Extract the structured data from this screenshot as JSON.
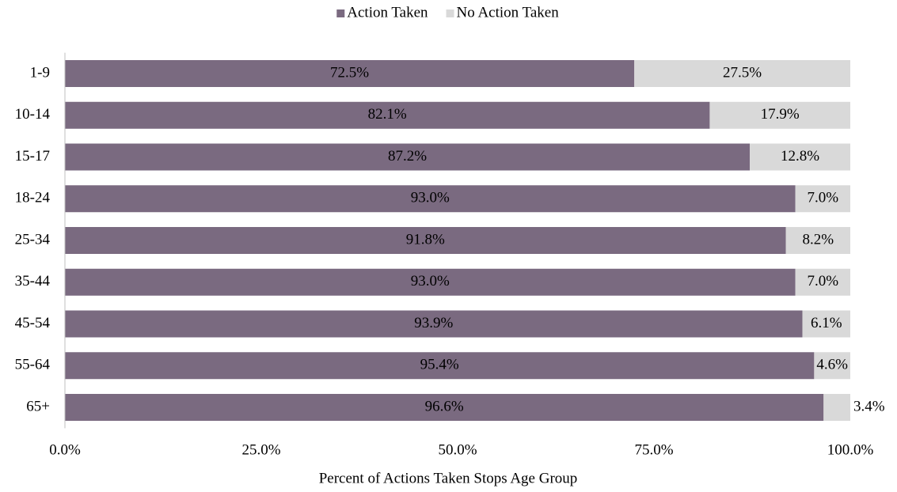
{
  "chart_data": {
    "type": "stacked-bar-horizontal",
    "x_label": "Percent of Actions Taken Stops Age Group",
    "categories": [
      "1-9",
      "10-14",
      "15-17",
      "18-24",
      "25-34",
      "35-44",
      "45-54",
      "55-64",
      "65+"
    ],
    "series": [
      {
        "name": "Action Taken",
        "color": "#7a6a80",
        "label_color": "#ffffff",
        "values": [
          72.5,
          82.1,
          87.2,
          93.0,
          91.8,
          93.0,
          93.9,
          95.4,
          96.6
        ],
        "value_labels": [
          "72.5%",
          "82.1%",
          "87.2%",
          "93.0%",
          "91.8%",
          "93.0%",
          "93.9%",
          "95.4%",
          "96.6%"
        ]
      },
      {
        "name": "No Action Taken",
        "color": "#d9d9d9",
        "label_color": "#000000",
        "values": [
          27.5,
          17.9,
          12.8,
          7.0,
          8.2,
          7.0,
          6.1,
          4.6,
          3.4
        ],
        "value_labels": [
          "27.5%",
          "17.9%",
          "12.8%",
          "7.0%",
          "8.2%",
          "7.0%",
          "6.1%",
          "4.6%",
          "3.4%"
        ]
      }
    ],
    "xlim": [
      0,
      100
    ],
    "xticks": [
      {
        "value": 0,
        "label": "0.0%"
      },
      {
        "value": 25,
        "label": "25.0%"
      },
      {
        "value": 50,
        "label": "50.0%"
      },
      {
        "value": 75,
        "label": "75.0%"
      },
      {
        "value": 100,
        "label": "100.0%"
      }
    ],
    "legend": "top",
    "grid": false
  }
}
